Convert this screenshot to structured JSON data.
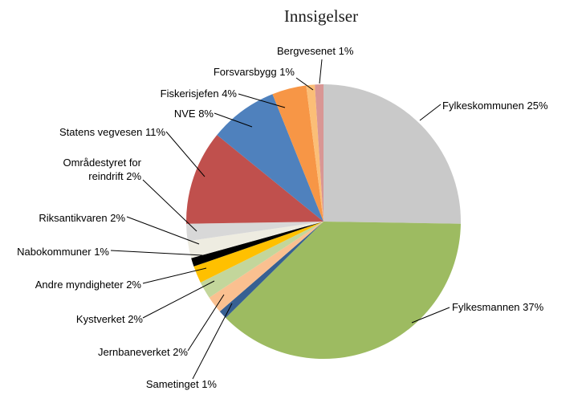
{
  "title": "Innsigelser",
  "chart_data": {
    "type": "pie",
    "title": "Innsigelser",
    "direction": "clockwise",
    "start_angle_deg": 0,
    "label_style": "callout-with-leader-lines",
    "legend_position": "none",
    "slices": [
      {
        "label": "Fylkeskommunen",
        "value": 25,
        "display": "Fylkeskommunen 25%",
        "color": "#C9C9C9"
      },
      {
        "label": "Fylkesmannen",
        "value": 37,
        "display": "Fylkesmannen 37%",
        "color": "#9DBB61"
      },
      {
        "label": "Sametinget",
        "value": 1,
        "display": "Sametinget 1%",
        "color": "#376092"
      },
      {
        "label": "Jernbaneverket",
        "value": 2,
        "display": "Jernbaneverket 2%",
        "color": "#FAC090"
      },
      {
        "label": "Kystverket",
        "value": 2,
        "display": "Kystverket 2%",
        "color": "#C3D69B"
      },
      {
        "label": "Andre myndigheter",
        "value": 2,
        "display": "Andre myndigheter 2%",
        "color": "#FFC000"
      },
      {
        "label": "Nabokommuner",
        "value": 1,
        "display": "Nabokommuner 1%",
        "color": "#000000"
      },
      {
        "label": "Riksantikvaren",
        "value": 2,
        "display": "Riksantikvaren 2%",
        "color": "#EEECE1"
      },
      {
        "label": "Områdestyret for reindrift",
        "value": 2,
        "display": "Områdestyret for reindrift 2%",
        "color": "#D8D8D8"
      },
      {
        "label": "Statens vegvesen",
        "value": 11,
        "display": "Statens vegvesen 11%",
        "color": "#C0504D"
      },
      {
        "label": "NVE",
        "value": 8,
        "display": "NVE 8%",
        "color": "#4F81BD"
      },
      {
        "label": "Fiskerisjefen",
        "value": 4,
        "display": "Fiskerisjefen 4%",
        "color": "#F79646"
      },
      {
        "label": "Forsvarsbygg",
        "value": 1,
        "display": "Forsvarsbygg 1%",
        "color": "#FBBE77"
      },
      {
        "label": "Bergvesenet",
        "value": 1,
        "display": "Bergvesenet 1%",
        "color": "#D99694"
      }
    ]
  }
}
